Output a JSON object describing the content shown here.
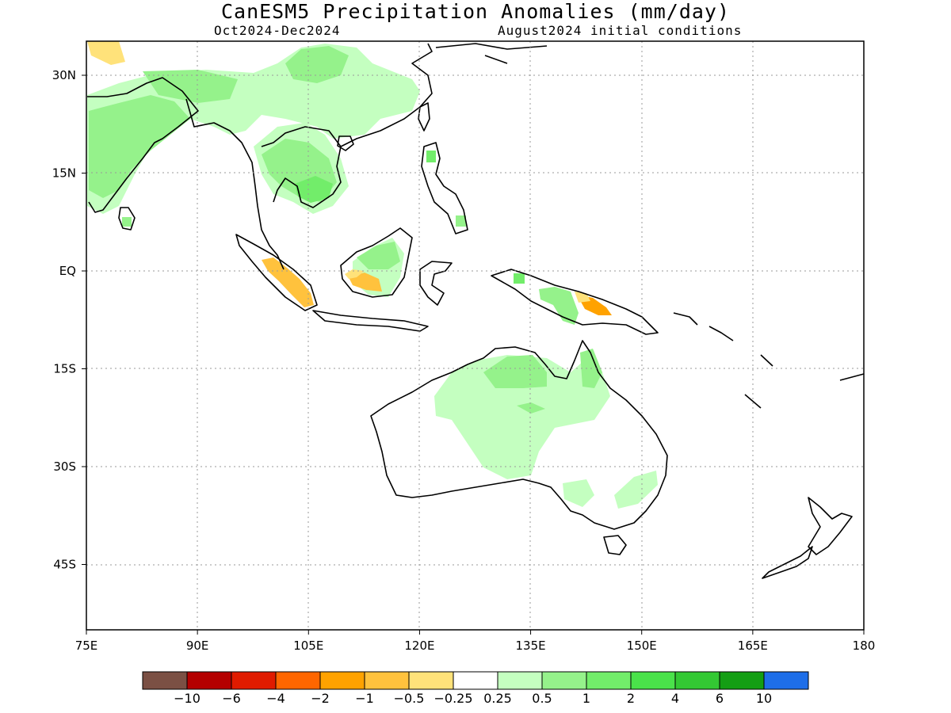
{
  "title": "CanESM5 Precipitation Anomalies (mm/day)",
  "period": "Oct2024-Dec2024",
  "initial_conditions": "August2024 initial conditions",
  "lat_labels": [
    {
      "lat": 30,
      "label": "30N"
    },
    {
      "lat": 15,
      "label": "15N"
    },
    {
      "lat": 0,
      "label": "EQ"
    },
    {
      "lat": -15,
      "label": "15S"
    },
    {
      "lat": -30,
      "label": "30S"
    },
    {
      "lat": -45,
      "label": "45S"
    }
  ],
  "lon_labels": [
    {
      "lon": 75,
      "label": "75E"
    },
    {
      "lon": 90,
      "label": "90E"
    },
    {
      "lon": 105,
      "label": "105E"
    },
    {
      "lon": 120,
      "label": "120E"
    },
    {
      "lon": 135,
      "label": "135E"
    },
    {
      "lon": 150,
      "label": "150E"
    },
    {
      "lon": 165,
      "label": "165E"
    },
    {
      "lon": 180,
      "label": "180"
    }
  ],
  "colorbar": {
    "colors": [
      "#7b5044",
      "#b40000",
      "#e01b00",
      "#ff6600",
      "#ffa200",
      "#ffc23d",
      "#ffe27a",
      "#ffffff",
      "#c4ffc0",
      "#95f28b",
      "#72ed6a",
      "#4ae24a",
      "#33c833",
      "#149e14",
      "#1e6ee8"
    ],
    "labels": [
      "-10",
      "-6",
      "-4",
      "-2",
      "-1",
      "-0.5",
      "-0.25",
      "0.25",
      "0.5",
      "1",
      "2",
      "4",
      "6",
      "10"
    ]
  }
}
